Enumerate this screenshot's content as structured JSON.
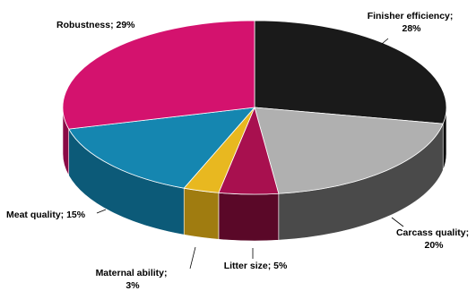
{
  "chart_data": {
    "type": "pie",
    "three_d": true,
    "slices": [
      {
        "label": "Finisher efficiency",
        "value": 28,
        "display": "28%",
        "color": "#1a1a1a",
        "side_color": "#0a0a0a"
      },
      {
        "label": "Carcass quality",
        "value": 20,
        "display": "20%",
        "color": "#b0b0b0",
        "side_color": "#4a4a4a"
      },
      {
        "label": "Litter size",
        "value": 5,
        "display": "5%",
        "color": "#a8104f",
        "side_color": "#5a0828"
      },
      {
        "label": "Maternal ability",
        "value": 3,
        "display": "3%",
        "color": "#e8b820",
        "side_color": "#a07c10"
      },
      {
        "label": "Meat quality",
        "value": 15,
        "display": "15%",
        "color": "#1586b0",
        "side_color": "#0c5a78"
      },
      {
        "label": "Robustness",
        "value": 29,
        "display": "29%",
        "color": "#d4126e",
        "side_color": "#8a0a46"
      }
    ],
    "label_text": [
      {
        "lines": [
          "Finisher efficiency;",
          "28%"
        ]
      },
      {
        "lines": [
          "Carcass quality;",
          "20%"
        ]
      },
      {
        "lines": [
          "Litter size; 5%"
        ]
      },
      {
        "lines": [
          "Maternal ability;",
          "3%"
        ]
      },
      {
        "lines": [
          "Meat quality; 15%"
        ]
      },
      {
        "lines": [
          "Robustness; 29%"
        ]
      }
    ]
  }
}
